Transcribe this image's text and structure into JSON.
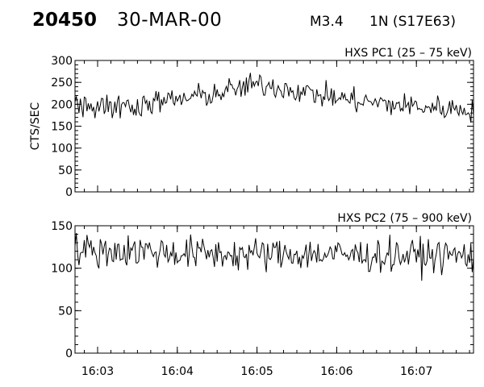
{
  "header": {
    "event_id": "20450",
    "date": "30-MAR-00",
    "flare_class": "M3.4",
    "position": "1N (S17E63)"
  },
  "chart_data": [
    {
      "type": "line",
      "title": "HXS PC1 (25 – 75 keV)",
      "ylabel": "CTS/SEC",
      "xlabel": "",
      "ylim": [
        0,
        300
      ],
      "yticks": [
        0,
        50,
        100,
        150,
        200,
        250,
        300
      ],
      "xlim": [
        "16:02:43",
        "16:07:43"
      ],
      "xticks": [
        "16:03",
        "16:04",
        "16:05",
        "16:06",
        "16:07"
      ],
      "grid": false,
      "series": [
        {
          "x": [
            "16:02:43",
            "16:03:00",
            "16:03:15",
            "16:03:30",
            "16:03:45",
            "16:04:00",
            "16:04:15",
            "16:04:30",
            "16:04:45",
            "16:05:00",
            "16:05:15",
            "16:05:30",
            "16:05:45",
            "16:06:00",
            "16:06:15",
            "16:06:30",
            "16:06:45",
            "16:07:00",
            "16:07:15",
            "16:07:30",
            "16:07:43"
          ],
          "values": [
            205,
            200,
            195,
            198,
            205,
            210,
            218,
            225,
            235,
            245,
            240,
            232,
            222,
            215,
            208,
            203,
            198,
            195,
            192,
            190,
            188
          ]
        }
      ]
    },
    {
      "type": "line",
      "title": "HXS PC2 (75 – 900 keV)",
      "ylabel": "",
      "xlabel": "",
      "ylim": [
        0,
        150
      ],
      "yticks": [
        0,
        50,
        100,
        150
      ],
      "xlim": [
        "16:02:43",
        "16:07:43"
      ],
      "xticks": [
        "16:03",
        "16:04",
        "16:05",
        "16:06",
        "16:07"
      ],
      "grid": false,
      "series": [
        {
          "x": [
            "16:02:43",
            "16:03:00",
            "16:03:30",
            "16:04:00",
            "16:04:30",
            "16:05:00",
            "16:05:30",
            "16:06:00",
            "16:06:30",
            "16:07:00",
            "16:07:30",
            "16:07:43"
          ],
          "values": [
            122,
            120,
            121,
            118,
            117,
            116,
            117,
            116,
            115,
            115,
            115,
            115
          ]
        }
      ]
    }
  ]
}
